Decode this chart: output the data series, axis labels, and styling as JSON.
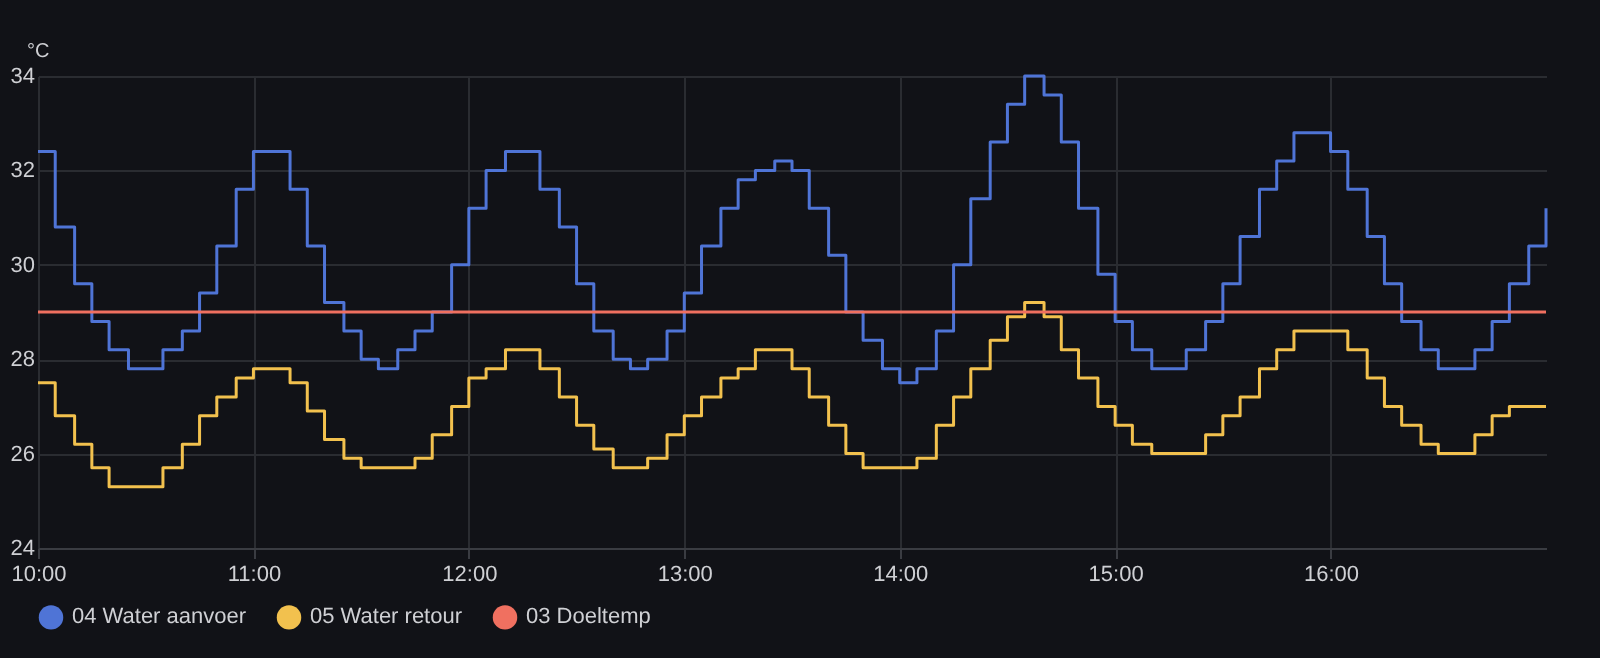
{
  "chart_data": {
    "type": "step",
    "ylabel": "°C",
    "x": [
      10.0,
      10.08,
      10.17,
      10.25,
      10.33,
      10.42,
      10.5,
      10.58,
      10.67,
      10.75,
      10.83,
      10.92,
      11.0,
      11.08,
      11.17,
      11.25,
      11.33,
      11.42,
      11.5,
      11.58,
      11.67,
      11.75,
      11.83,
      11.92,
      12.0,
      12.08,
      12.17,
      12.25,
      12.33,
      12.42,
      12.5,
      12.58,
      12.67,
      12.75,
      12.83,
      12.92,
      13.0,
      13.08,
      13.17,
      13.25,
      13.33,
      13.42,
      13.5,
      13.58,
      13.67,
      13.75,
      13.83,
      13.92,
      14.0,
      14.08,
      14.17,
      14.25,
      14.33,
      14.42,
      14.5,
      14.58,
      14.67,
      14.75,
      14.83,
      14.92,
      15.0,
      15.08,
      15.17,
      15.25,
      15.33,
      15.42,
      15.5,
      15.58,
      15.67,
      15.75,
      15.83,
      15.92,
      16.0,
      16.08,
      16.17,
      16.25,
      16.33,
      16.42,
      16.5,
      16.58,
      16.67,
      16.75,
      16.83,
      16.92,
      17.0
    ],
    "series": [
      {
        "name": "04 Water aanvoer",
        "color": "#4f74d6",
        "values": [
          32.4,
          30.8,
          29.6,
          28.8,
          28.2,
          27.8,
          27.8,
          28.2,
          28.6,
          29.4,
          30.4,
          31.6,
          32.4,
          32.4,
          31.6,
          30.4,
          29.2,
          28.6,
          28.0,
          27.8,
          28.2,
          28.6,
          29.0,
          30.0,
          31.2,
          32.0,
          32.4,
          32.4,
          31.6,
          30.8,
          29.6,
          28.6,
          28.0,
          27.8,
          28.0,
          28.6,
          29.4,
          30.4,
          31.2,
          31.8,
          32.0,
          32.2,
          32.0,
          31.2,
          30.2,
          29.0,
          28.4,
          27.8,
          27.5,
          27.8,
          28.6,
          30.0,
          31.4,
          32.6,
          33.4,
          34.0,
          33.6,
          32.6,
          31.2,
          29.8,
          28.8,
          28.2,
          27.8,
          27.8,
          28.2,
          28.8,
          29.6,
          30.6,
          31.6,
          32.2,
          32.8,
          32.8,
          32.4,
          31.6,
          30.6,
          29.6,
          28.8,
          28.2,
          27.8,
          27.8,
          28.2,
          28.8,
          29.6,
          30.4,
          31.2
        ]
      },
      {
        "name": "05 Water retour",
        "color": "#f2c14e",
        "values": [
          27.5,
          26.8,
          26.2,
          25.7,
          25.3,
          25.3,
          25.3,
          25.7,
          26.2,
          26.8,
          27.2,
          27.6,
          27.8,
          27.8,
          27.5,
          26.9,
          26.3,
          25.9,
          25.7,
          25.7,
          25.7,
          25.9,
          26.4,
          27.0,
          27.6,
          27.8,
          28.2,
          28.2,
          27.8,
          27.2,
          26.6,
          26.1,
          25.7,
          25.7,
          25.9,
          26.4,
          26.8,
          27.2,
          27.6,
          27.8,
          28.2,
          28.2,
          27.8,
          27.2,
          26.6,
          26.0,
          25.7,
          25.7,
          25.7,
          25.9,
          26.6,
          27.2,
          27.8,
          28.4,
          28.9,
          29.2,
          28.9,
          28.2,
          27.6,
          27.0,
          26.6,
          26.2,
          26.0,
          26.0,
          26.0,
          26.4,
          26.8,
          27.2,
          27.8,
          28.2,
          28.6,
          28.6,
          28.6,
          28.2,
          27.6,
          27.0,
          26.6,
          26.2,
          26.0,
          26.0,
          26.4,
          26.8,
          27.0,
          27.0,
          27.0
        ]
      },
      {
        "name": "03 Doeltemp",
        "color": "#f07060",
        "values": [
          29,
          29,
          29,
          29,
          29,
          29,
          29,
          29,
          29,
          29,
          29,
          29,
          29,
          29,
          29,
          29,
          29,
          29,
          29,
          29,
          29,
          29,
          29,
          29,
          29,
          29,
          29,
          29,
          29,
          29,
          29,
          29,
          29,
          29,
          29,
          29,
          29,
          29,
          29,
          29,
          29,
          29,
          29,
          29,
          29,
          29,
          29,
          29,
          29,
          29,
          29,
          29,
          29,
          29,
          29,
          29,
          29,
          29,
          29,
          29,
          29,
          29,
          29,
          29,
          29,
          29,
          29,
          29,
          29,
          29,
          29,
          29,
          29,
          29,
          29,
          29,
          29,
          29,
          29,
          29,
          29,
          29,
          29,
          29,
          29
        ]
      }
    ],
    "xlim": [
      10,
      17
    ],
    "xticks": [
      {
        "value": 10,
        "label": "10:00"
      },
      {
        "value": 11,
        "label": "11:00"
      },
      {
        "value": 12,
        "label": "12:00"
      },
      {
        "value": 13,
        "label": "13:00"
      },
      {
        "value": 14,
        "label": "14:00"
      },
      {
        "value": 15,
        "label": "15:00"
      },
      {
        "value": 16,
        "label": "16:00"
      }
    ],
    "ylim": [
      24,
      34
    ],
    "yticks": [
      24,
      26,
      28,
      30,
      32,
      34
    ],
    "grid": true,
    "legend": "bottom"
  }
}
